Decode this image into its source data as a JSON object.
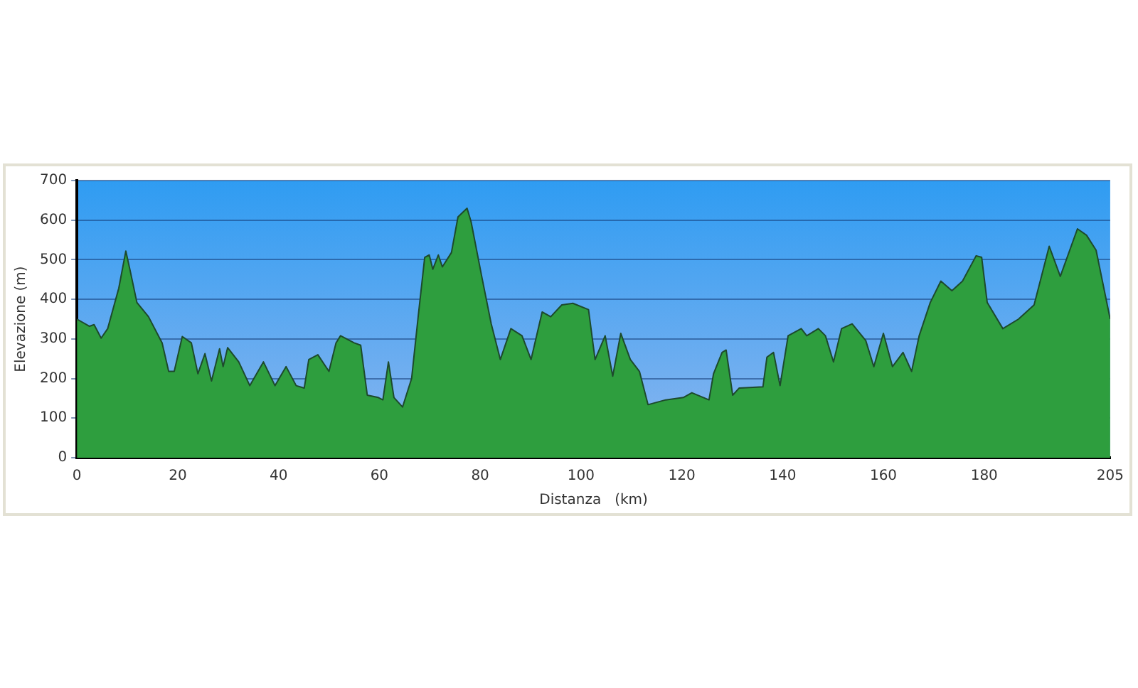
{
  "chart_data": {
    "type": "area",
    "xlabel": "Distanza   (km)",
    "ylabel": "Elevazione (m)",
    "xlim": [
      0,
      205
    ],
    "xticks": [
      0,
      20,
      40,
      60,
      80,
      100,
      120,
      140,
      160,
      180,
      205
    ],
    "ylim": [
      0,
      700
    ],
    "yticks": [
      0,
      100,
      200,
      300,
      400,
      500,
      600,
      700
    ],
    "grid": "y",
    "series": [
      {
        "color": "#2e9e3e",
        "x": [
          0,
          2.5,
          3.4,
          4.8,
          6.1,
          8.3,
          9.7,
          10.6,
          11.9,
          14.2,
          16.9,
          18.2,
          19.3,
          20.9,
          22.7,
          24.0,
          25.4,
          26.7,
          28.3,
          29.0,
          29.9,
          32.1,
          34.3,
          37.0,
          39.3,
          41.5,
          43.5,
          45.1,
          46.0,
          47.8,
          50.0,
          51.4,
          52.3,
          55.0,
          56.3,
          57.6,
          59.8,
          60.7,
          61.8,
          62.9,
          64.6,
          66.4,
          67.7,
          69.0,
          69.9,
          70.6,
          71.7,
          72.5,
          74.3,
          75.6,
          77.4,
          78.2,
          80.4,
          82.2,
          84.0,
          86.1,
          88.3,
          90.1,
          92.3,
          94.0,
          96.2,
          98.4,
          101.5,
          102.8,
          104.8,
          106.3,
          107.9,
          109.8,
          111.6,
          113.3,
          116.8,
          120.3,
          122.0,
          125.4,
          126.3,
          128.0,
          128.8,
          130.1,
          131.4,
          136.1,
          136.9,
          138.2,
          139.5,
          141.1,
          143.7,
          144.8,
          147.1,
          148.5,
          150.1,
          151.7,
          153.8,
          156.5,
          158.1,
          160.0,
          161.8,
          163.9,
          165.6,
          167.1,
          169.3,
          171.4,
          173.6,
          175.7,
          178.4,
          179.5,
          180.6,
          183.7,
          186.8,
          189.9,
          192.9,
          195.1,
          198.5,
          200.3,
          202.2,
          205
        ],
        "values": [
          350,
          332,
          336,
          302,
          326,
          428,
          522,
          470,
          392,
          356,
          290,
          218,
          218,
          306,
          290,
          212,
          263,
          194,
          275,
          230,
          278,
          242,
          182,
          242,
          182,
          230,
          182,
          176,
          248,
          260,
          218,
          290,
          308,
          290,
          284,
          158,
          152,
          146,
          242,
          152,
          128,
          200,
          356,
          506,
          512,
          476,
          512,
          482,
          518,
          608,
          630,
          596,
          452,
          338,
          248,
          326,
          308,
          248,
          368,
          356,
          386,
          390,
          374,
          248,
          308,
          206,
          314,
          248,
          218,
          134,
          146,
          152,
          164,
          146,
          212,
          266,
          272,
          158,
          176,
          179,
          254,
          266,
          182,
          308,
          326,
          308,
          326,
          308,
          242,
          326,
          338,
          296,
          230,
          314,
          230,
          266,
          218,
          308,
          392,
          446,
          422,
          446,
          510,
          506,
          392,
          326,
          350,
          386,
          534,
          458,
          578,
          562,
          524,
          350
        ]
      }
    ]
  }
}
